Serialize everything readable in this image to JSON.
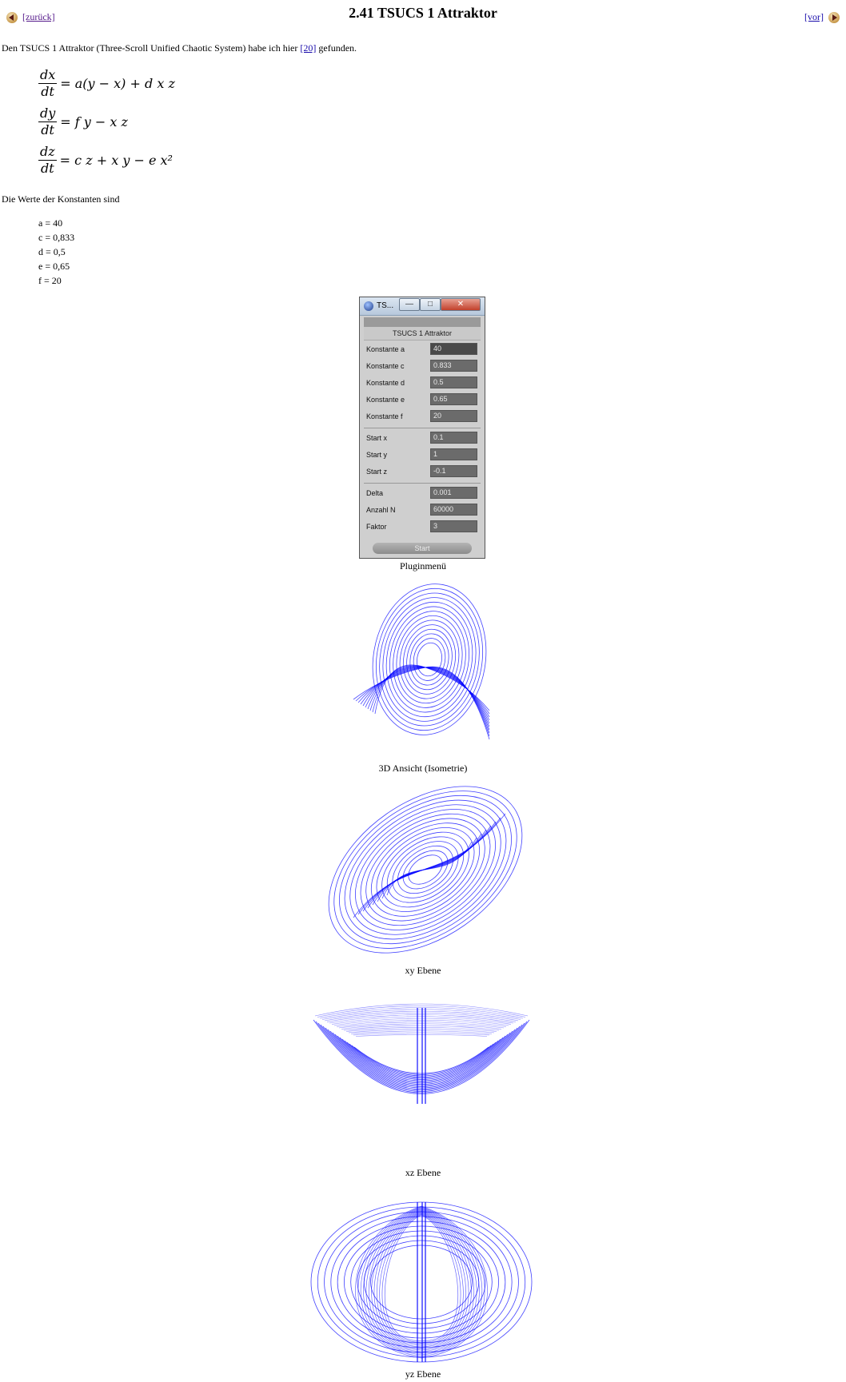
{
  "nav": {
    "back_label": "[zurück]",
    "next_label": "[vor]"
  },
  "title": "2.41 TSUCS 1 Attraktor",
  "intro": {
    "before": "Den TSUCS 1 Attraktor (Three-Scroll Unified Chaotic System) habe ich hier ",
    "ref": "[20]",
    "after": " gefunden."
  },
  "equations": [
    {
      "num": "dx",
      "den": "dt",
      "rhs": "= a(y − x) + d x z"
    },
    {
      "num": "dy",
      "den": "dt",
      "rhs": "= f y − x z"
    },
    {
      "num": "dz",
      "den": "dt",
      "rhs": "= c z + x y − e x²"
    }
  ],
  "constants_intro": "Die Werte der Konstanten sind",
  "constants": [
    "a = 40",
    "c = 0,833",
    "d = 0,5",
    "e = 0,65",
    "f = 20"
  ],
  "plugin": {
    "window_title": "TS...",
    "heading": "TSUCS 1 Attraktor",
    "params": [
      {
        "label": "Konstante a",
        "value": "40"
      },
      {
        "label": "Konstante c",
        "value": "0.833"
      },
      {
        "label": "Konstante d",
        "value": "0.5"
      },
      {
        "label": "Konstante e",
        "value": "0.65"
      },
      {
        "label": "Konstante f",
        "value": "20"
      }
    ],
    "starts": [
      {
        "label": "Start x",
        "value": "0.1"
      },
      {
        "label": "Start y",
        "value": "1"
      },
      {
        "label": "Start z",
        "value": "-0.1"
      }
    ],
    "settings": [
      {
        "label": "Delta",
        "value": "0.001"
      },
      {
        "label": "Anzahl N",
        "value": "60000"
      },
      {
        "label": "Faktor",
        "value": "3"
      }
    ],
    "start_label": "Start"
  },
  "captions": {
    "plugin": "Pluginmenü",
    "iso": "3D Ansicht (Isometrie)",
    "xy": "xy Ebene",
    "xz": "xz Ebene",
    "yz": "yz Ebene"
  },
  "colors": {
    "curve": "#0000ff",
    "link": "#1a0dab"
  }
}
